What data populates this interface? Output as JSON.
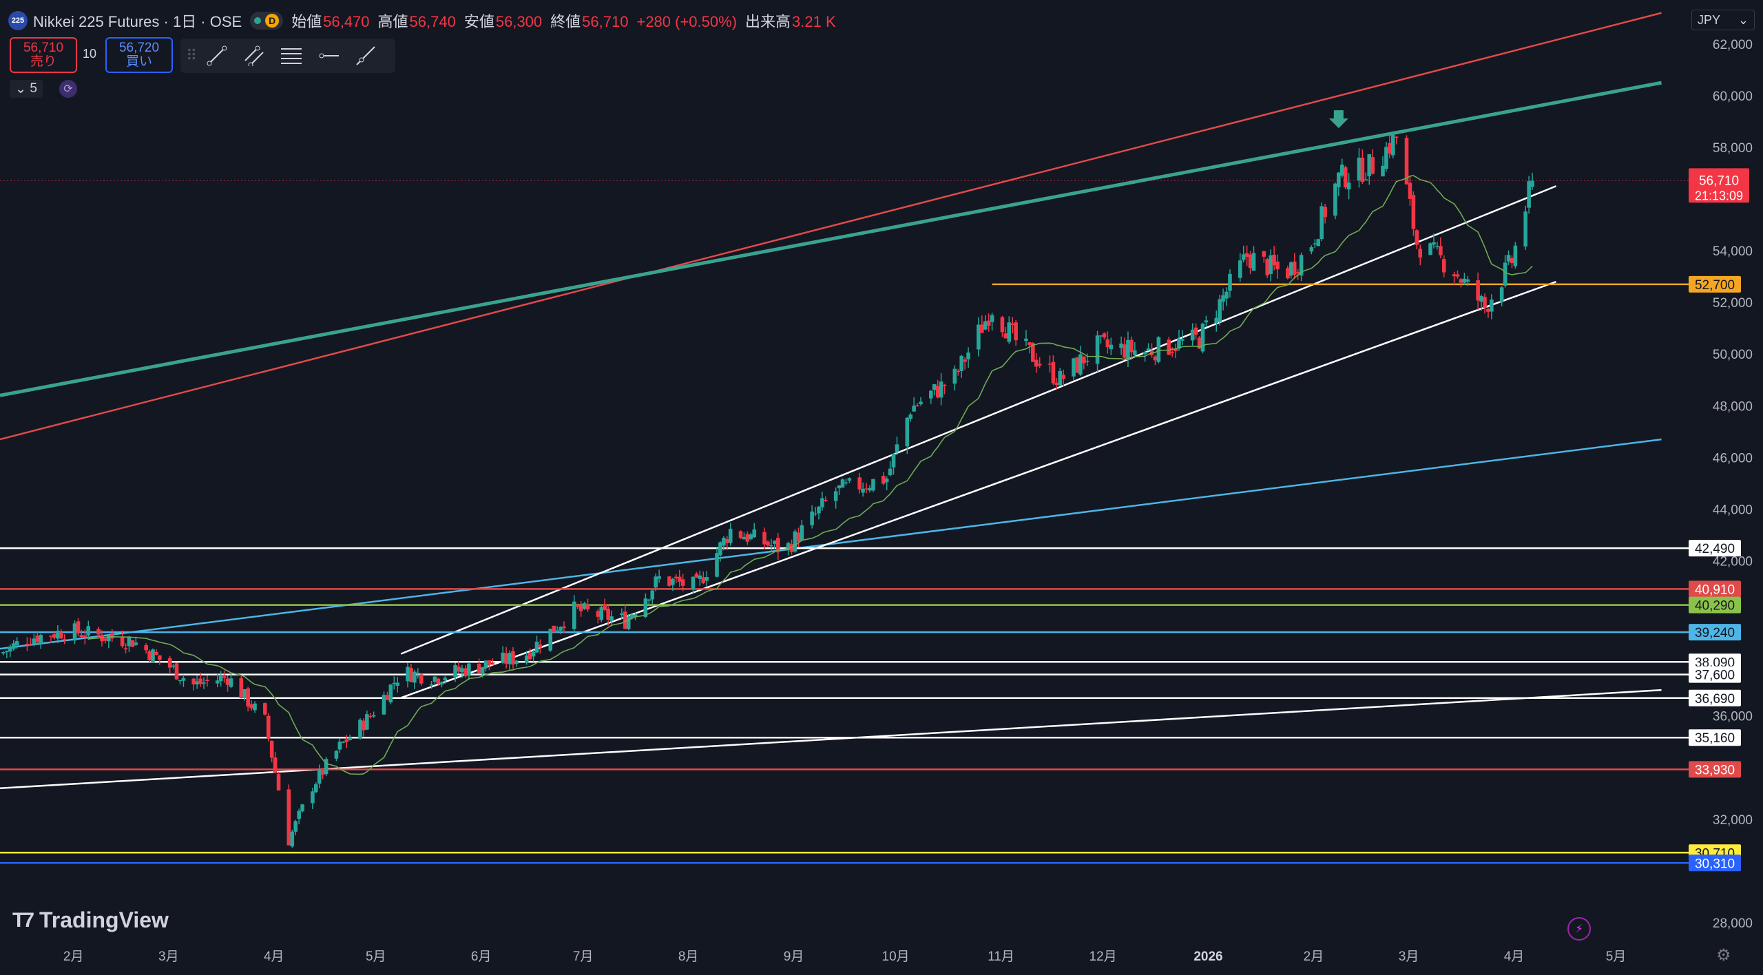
{
  "header": {
    "symbol_icon": "225",
    "title": "Nikkei 225 Futures · 1日 · OSE",
    "interval_badge": "D",
    "ohlc": [
      {
        "label": "始値",
        "value": "56,470"
      },
      {
        "label": "高値",
        "value": "56,740"
      },
      {
        "label": "安値",
        "value": "56,300"
      },
      {
        "label": "終値",
        "value": "56,710"
      },
      {
        "label": "",
        "value": "+280 (+0.50%)"
      },
      {
        "label": "出来高",
        "value": "3.21 K"
      }
    ]
  },
  "trade": {
    "sell_price": "56,710",
    "sell_label": "売り",
    "quantity": "10",
    "buy_price": "56,720",
    "buy_label": "買い"
  },
  "toolbar_icons": [
    "trend-line-icon",
    "channel-icon",
    "fib-icon",
    "horizontal-ray-icon",
    "extended-line-icon"
  ],
  "indicators": {
    "count": "5"
  },
  "currency": "JPY",
  "brand": "TradingView",
  "colors": {
    "up": "#26a69a",
    "down": "#f23645",
    "bg": "#131722",
    "teal": "#3aa38f",
    "red": "#e04a4a",
    "cyan": "#4db6e6",
    "orange": "#f5a623",
    "white": "#ffffff",
    "green_line": "#8bc34a",
    "yellow": "#ffeb3b",
    "blue": "#2962ff",
    "ma": "#6faa55"
  },
  "chart_data": {
    "type": "candlestick",
    "y_axis": {
      "range": [
        27200,
        63700
      ],
      "ticks": [
        28000,
        32000,
        36000,
        42000,
        44000,
        46000,
        48000,
        50000,
        52000,
        54000,
        58000,
        60000,
        62000
      ],
      "tick_labels": [
        "28,000",
        "32,000",
        "36,000",
        "42,000",
        "44,000",
        "46,000",
        "48,000",
        "50,000",
        "52,000",
        "54,000",
        "58,000",
        "60,000",
        "62,000"
      ]
    },
    "x_axis": {
      "labels": [
        "2月",
        "3月",
        "4月",
        "5月",
        "6月",
        "7月",
        "8月",
        "9月",
        "10月",
        "11月",
        "12月",
        "2026",
        "2月",
        "3月",
        "4月",
        "5月"
      ],
      "dates": [
        "2025-02-01",
        "2025-03-01",
        "2025-04-01",
        "2025-05-01",
        "2025-06-01",
        "2025-07-01",
        "2025-08-01",
        "2025-09-01",
        "2025-10-01",
        "2025-11-01",
        "2025-12-01",
        "2026-01-01",
        "2026-02-01",
        "2026-03-01",
        "2026-04-01",
        "2026-05-01"
      ],
      "range": [
        "2025-01-12",
        "2026-05-24"
      ]
    },
    "price_path": [
      [
        "2025-01-12",
        38400
      ],
      [
        "2025-01-20",
        39000
      ],
      [
        "2025-02-01",
        39300
      ],
      [
        "2025-02-20",
        38900
      ],
      [
        "2025-03-01",
        38100
      ],
      [
        "2025-03-10",
        37200
      ],
      [
        "2025-03-20",
        37500
      ],
      [
        "2025-03-31",
        35800
      ],
      [
        "2025-04-07",
        31200
      ],
      [
        "2025-04-14",
        33300
      ],
      [
        "2025-04-22",
        34800
      ],
      [
        "2025-05-01",
        36000
      ],
      [
        "2025-05-10",
        37700
      ],
      [
        "2025-05-20",
        37500
      ],
      [
        "2025-06-01",
        37900
      ],
      [
        "2025-06-15",
        38300
      ],
      [
        "2025-06-30",
        40100
      ],
      [
        "2025-07-15",
        39700
      ],
      [
        "2025-07-25",
        41300
      ],
      [
        "2025-08-05",
        41000
      ],
      [
        "2025-08-15",
        43200
      ],
      [
        "2025-08-31",
        42400
      ],
      [
        "2025-09-15",
        44700
      ],
      [
        "2025-09-30",
        45200
      ],
      [
        "2025-10-07",
        47900
      ],
      [
        "2025-10-20",
        49100
      ],
      [
        "2025-10-31",
        51800
      ],
      [
        "2025-11-07",
        50500
      ],
      [
        "2025-11-20",
        49000
      ],
      [
        "2025-12-01",
        50300
      ],
      [
        "2025-12-15",
        50100
      ],
      [
        "2025-12-31",
        50600
      ],
      [
        "2026-01-14",
        53800
      ],
      [
        "2026-01-25",
        53100
      ],
      [
        "2026-02-01",
        54000
      ],
      [
        "2026-02-10",
        56800
      ],
      [
        "2026-02-20",
        57300
      ],
      [
        "2026-02-27",
        58400
      ],
      [
        "2026-03-05",
        54300
      ],
      [
        "2026-03-15",
        53400
      ],
      [
        "2026-03-25",
        51800
      ],
      [
        "2026-04-02",
        53600
      ],
      [
        "2026-04-08",
        56710
      ]
    ],
    "last_price": {
      "value": 56710,
      "label": "56,710",
      "countdown": "21:13:09"
    },
    "horizontal_levels": [
      {
        "value": 52700,
        "label": "52,700",
        "color": "orange",
        "from": "2025-10-31"
      },
      {
        "value": 42490,
        "label": "42,490",
        "color": "white"
      },
      {
        "value": 40910,
        "label": "40,910",
        "color": "red"
      },
      {
        "value": 40290,
        "label": "40,290",
        "color": "green_line"
      },
      {
        "value": 39240,
        "label": "39,240",
        "color": "cyan"
      },
      {
        "value": 38090,
        "label": "38,090",
        "color": "white"
      },
      {
        "value": 37600,
        "label": "37,600",
        "color": "white"
      },
      {
        "value": 36690,
        "label": "36,690",
        "color": "white"
      },
      {
        "value": 35160,
        "label": "35,160",
        "color": "white"
      },
      {
        "value": 33930,
        "label": "33,930",
        "color": "red"
      },
      {
        "value": 30710,
        "label": "30,710",
        "color": "yellow"
      },
      {
        "value": 30310,
        "label": "30,310",
        "color": "blue"
      }
    ],
    "trend_lines": [
      {
        "color": "red",
        "from": [
          "2025-01-12",
          46700
        ],
        "to": [
          "2026-05-16",
          63200
        ]
      },
      {
        "color": "teal",
        "thick": true,
        "from": [
          "2025-01-12",
          48400
        ],
        "to": [
          "2026-05-16",
          60500
        ]
      },
      {
        "color": "cyan",
        "from": [
          "2025-01-12",
          38600
        ],
        "to": [
          "2026-05-16",
          46700
        ]
      },
      {
        "color": "white",
        "from": [
          "2025-01-12",
          33200
        ],
        "to": [
          "2026-05-16",
          37000
        ]
      },
      {
        "color": "white",
        "from": [
          "2025-05-10",
          38400
        ],
        "to": [
          "2026-04-15",
          56500
        ]
      },
      {
        "color": "white",
        "from": [
          "2025-05-10",
          36700
        ],
        "to": [
          "2026-04-15",
          52800
        ]
      }
    ],
    "marker": {
      "date": "2026-02-10",
      "value": 58900,
      "icon": "down-arrow-icon",
      "color": "teal"
    }
  }
}
